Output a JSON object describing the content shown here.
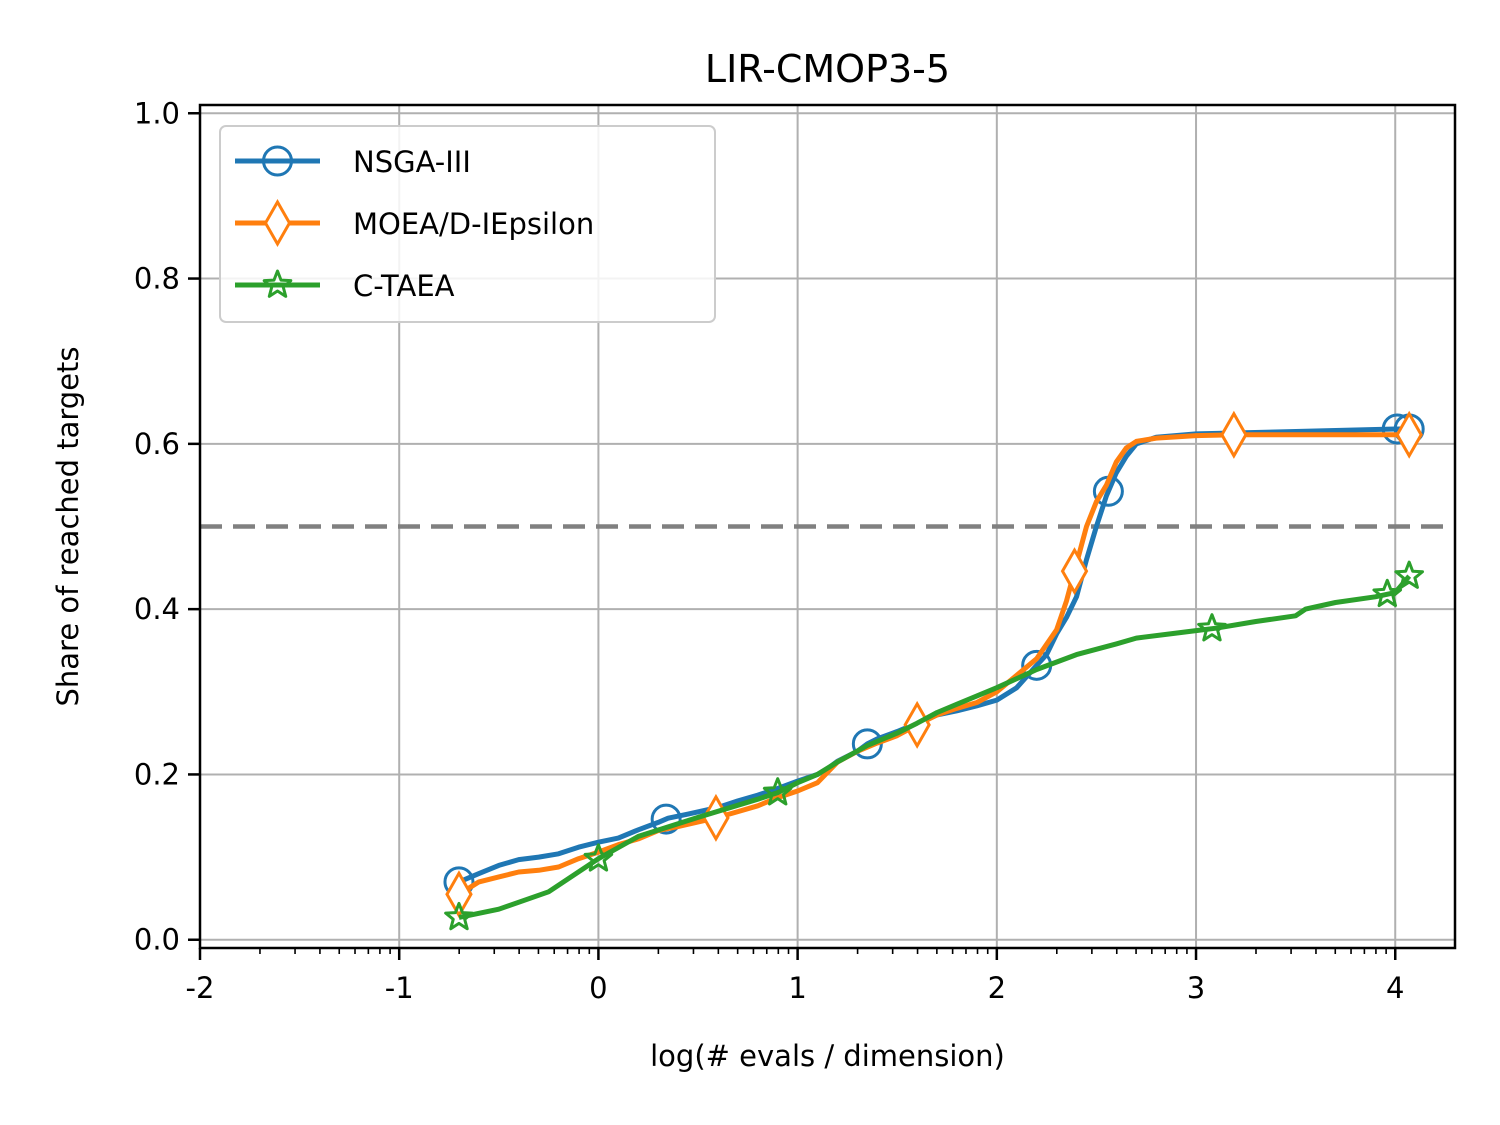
{
  "chart_data": {
    "type": "line",
    "title": "LIR-CMOP3-5",
    "xlabel": "log(# evals / dimension)",
    "ylabel": "Share of reached targets",
    "xlim": [
      -2,
      4.3
    ],
    "ylim": [
      -0.01,
      1.01
    ],
    "x_ticks": [
      -2,
      -1,
      0,
      1,
      2,
      3,
      4
    ],
    "x_tick_labels": [
      "-2",
      "-1",
      "0",
      "1",
      "2",
      "3",
      "4"
    ],
    "y_ticks": [
      0.0,
      0.2,
      0.4,
      0.6,
      0.8,
      1.0
    ],
    "y_tick_labels": [
      "0.0",
      "0.2",
      "0.4",
      "0.6",
      "0.8",
      "1.0"
    ],
    "x_log_minor_ticks": true,
    "grid": true,
    "legend_position": "upper-left",
    "reference_line": {
      "y": 0.5,
      "style": "dashed",
      "color": "#808080"
    },
    "series": [
      {
        "name": "NSGA-III",
        "color": "#1f77b4",
        "marker": "circle",
        "points": [
          [
            -0.7,
            0.07
          ],
          [
            -0.6,
            0.08
          ],
          [
            -0.5,
            0.09
          ],
          [
            -0.4,
            0.097
          ],
          [
            -0.3,
            0.1
          ],
          [
            -0.2,
            0.104
          ],
          [
            -0.1,
            0.112
          ],
          [
            0.0,
            0.118
          ],
          [
            0.1,
            0.123
          ],
          [
            0.2,
            0.133
          ],
          [
            0.3,
            0.142
          ],
          [
            0.35,
            0.147
          ],
          [
            0.45,
            0.152
          ],
          [
            0.6,
            0.16
          ],
          [
            0.7,
            0.168
          ],
          [
            0.8,
            0.175
          ],
          [
            0.9,
            0.183
          ],
          [
            1.0,
            0.192
          ],
          [
            1.1,
            0.2
          ],
          [
            1.15,
            0.207
          ],
          [
            1.2,
            0.216
          ],
          [
            1.3,
            0.228
          ],
          [
            1.35,
            0.237
          ],
          [
            1.4,
            0.243
          ],
          [
            1.5,
            0.252
          ],
          [
            1.6,
            0.262
          ],
          [
            1.7,
            0.272
          ],
          [
            1.8,
            0.277
          ],
          [
            1.9,
            0.283
          ],
          [
            2.0,
            0.29
          ],
          [
            2.1,
            0.305
          ],
          [
            2.2,
            0.332
          ],
          [
            2.25,
            0.345
          ],
          [
            2.3,
            0.37
          ],
          [
            2.35,
            0.39
          ],
          [
            2.4,
            0.415
          ],
          [
            2.45,
            0.46
          ],
          [
            2.5,
            0.5
          ],
          [
            2.55,
            0.537
          ],
          [
            2.6,
            0.565
          ],
          [
            2.65,
            0.585
          ],
          [
            2.7,
            0.6
          ],
          [
            2.8,
            0.608
          ],
          [
            3.0,
            0.612
          ],
          [
            3.5,
            0.615
          ],
          [
            4.0,
            0.618
          ],
          [
            4.07,
            0.618
          ]
        ],
        "marker_x": [
          -0.7,
          0.34,
          1.35,
          2.2,
          2.56,
          4.01,
          4.07
        ]
      },
      {
        "name": "MOEA/D-IEpsilon",
        "color": "#ff7f0e",
        "marker": "diamond",
        "points": [
          [
            -0.7,
            0.055
          ],
          [
            -0.6,
            0.07
          ],
          [
            -0.5,
            0.076
          ],
          [
            -0.4,
            0.082
          ],
          [
            -0.3,
            0.084
          ],
          [
            -0.2,
            0.088
          ],
          [
            -0.1,
            0.098
          ],
          [
            0.0,
            0.106
          ],
          [
            0.1,
            0.115
          ],
          [
            0.2,
            0.122
          ],
          [
            0.3,
            0.132
          ],
          [
            0.4,
            0.137
          ],
          [
            0.6,
            0.148
          ],
          [
            0.7,
            0.155
          ],
          [
            0.8,
            0.162
          ],
          [
            0.9,
            0.172
          ],
          [
            1.0,
            0.18
          ],
          [
            1.1,
            0.19
          ],
          [
            1.2,
            0.215
          ],
          [
            1.3,
            0.228
          ],
          [
            1.4,
            0.238
          ],
          [
            1.5,
            0.247
          ],
          [
            1.6,
            0.26
          ],
          [
            1.7,
            0.272
          ],
          [
            1.8,
            0.28
          ],
          [
            1.9,
            0.287
          ],
          [
            2.0,
            0.3
          ],
          [
            2.1,
            0.32
          ],
          [
            2.2,
            0.34
          ],
          [
            2.3,
            0.375
          ],
          [
            2.35,
            0.41
          ],
          [
            2.4,
            0.455
          ],
          [
            2.45,
            0.5
          ],
          [
            2.5,
            0.53
          ],
          [
            2.55,
            0.55
          ],
          [
            2.6,
            0.578
          ],
          [
            2.65,
            0.595
          ],
          [
            2.7,
            0.603
          ],
          [
            2.8,
            0.607
          ],
          [
            3.0,
            0.61
          ],
          [
            3.2,
            0.611
          ],
          [
            4.07,
            0.611
          ]
        ],
        "marker_x": [
          -0.7,
          0.59,
          1.6,
          2.39,
          3.19,
          4.07
        ]
      },
      {
        "name": "C-TAEA",
        "color": "#2ca02c",
        "marker": "star",
        "points": [
          [
            -0.7,
            0.027
          ],
          [
            -0.5,
            0.037
          ],
          [
            -0.25,
            0.058
          ],
          [
            0.0,
            0.098
          ],
          [
            0.2,
            0.125
          ],
          [
            0.5,
            0.148
          ],
          [
            0.8,
            0.17
          ],
          [
            0.9,
            0.178
          ],
          [
            1.0,
            0.19
          ],
          [
            1.1,
            0.2
          ],
          [
            1.2,
            0.215
          ],
          [
            1.35,
            0.235
          ],
          [
            1.5,
            0.25
          ],
          [
            1.6,
            0.262
          ],
          [
            1.7,
            0.275
          ],
          [
            1.8,
            0.285
          ],
          [
            1.9,
            0.295
          ],
          [
            2.0,
            0.305
          ],
          [
            2.2,
            0.327
          ],
          [
            2.4,
            0.345
          ],
          [
            2.6,
            0.358
          ],
          [
            2.7,
            0.365
          ],
          [
            2.9,
            0.371
          ],
          [
            3.0,
            0.374
          ],
          [
            3.1,
            0.377
          ],
          [
            3.3,
            0.385
          ],
          [
            3.5,
            0.392
          ],
          [
            3.55,
            0.4
          ],
          [
            3.7,
            0.408
          ],
          [
            3.9,
            0.415
          ],
          [
            4.0,
            0.42
          ],
          [
            4.07,
            0.44
          ]
        ],
        "marker_x": [
          -0.7,
          0.0,
          0.9,
          3.08,
          3.96,
          4.07
        ]
      }
    ]
  }
}
